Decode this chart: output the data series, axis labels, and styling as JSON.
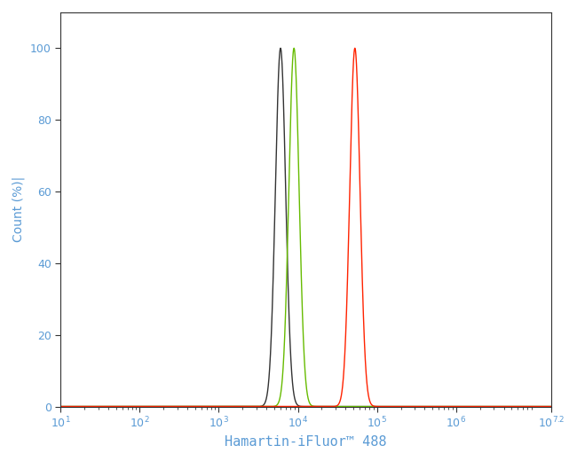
{
  "title": "",
  "xlabel": "Hamartin-iFluor™ 488",
  "ylabel": "Count (%)|",
  "xlim_log": [
    1,
    7.2
  ],
  "ylim": [
    0,
    110
  ],
  "yticks": [
    0,
    20,
    40,
    60,
    80,
    100
  ],
  "curves": [
    {
      "color": "#333333",
      "peak_log": 3.78,
      "sigma_log": 0.065,
      "peak_height": 100
    },
    {
      "color": "#66bb00",
      "peak_log": 3.95,
      "sigma_log": 0.065,
      "peak_height": 100
    },
    {
      "color": "#ff2200",
      "peak_log": 4.72,
      "sigma_log": 0.065,
      "peak_height": 100
    }
  ],
  "background_color": "#ffffff",
  "spine_color": "#333333",
  "label_color": "#5b9bd5",
  "tick_label_color": "#5b9bd5",
  "tick_color": "#333333"
}
